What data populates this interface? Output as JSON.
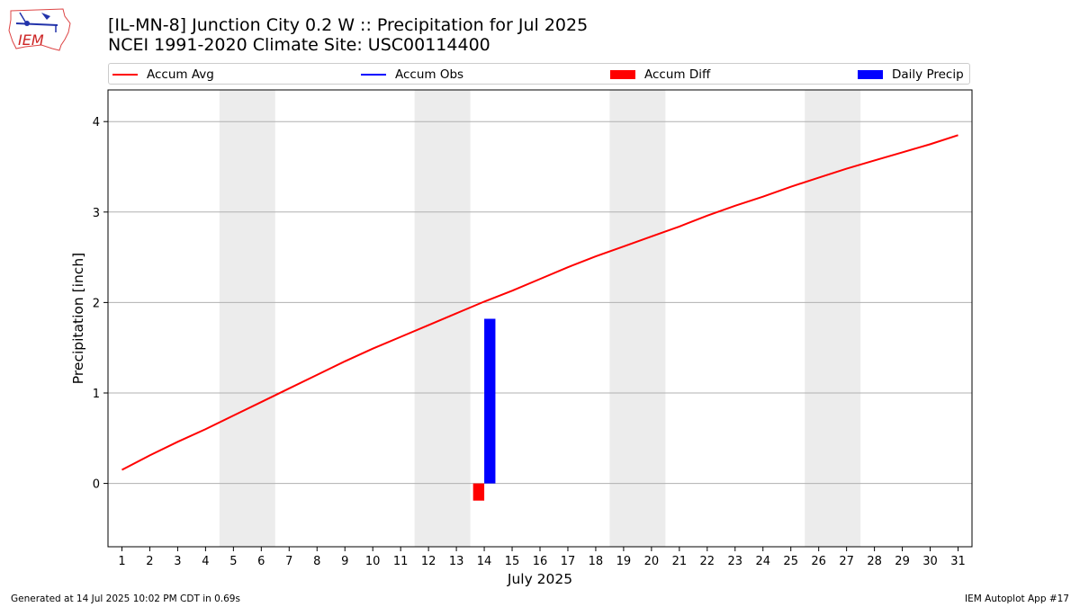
{
  "header": {
    "title_line1": "[IL-MN-8] Junction City 0.2 W :: Precipitation for Jul 2025",
    "title_line2": "NCEI 1991-2020 Climate Site: USC00114400"
  },
  "logo": {
    "text": "IEM"
  },
  "legend": {
    "items": [
      {
        "label": "Accum Avg",
        "color": "#ff0000",
        "kind": "line"
      },
      {
        "label": "Accum Obs",
        "color": "#0000ff",
        "kind": "line"
      },
      {
        "label": "Accum Diff",
        "color": "#ff0000",
        "kind": "box"
      },
      {
        "label": "Daily Precip",
        "color": "#0000ff",
        "kind": "box"
      }
    ]
  },
  "footer": {
    "generated": "Generated at 14 Jul 2025 10:02 PM CDT in 0.69s",
    "app": "IEM Autoplot App #17"
  },
  "chart_data": {
    "type": "line",
    "title": "[IL-MN-8] Junction City 0.2 W :: Precipitation for Jul 2025",
    "subtitle": "NCEI 1991-2020 Climate Site: USC00114400",
    "xlabel": "July 2025",
    "ylabel": "Precipitation [inch]",
    "xlim": [
      0.5,
      31.5
    ],
    "ylim": [
      -0.7,
      4.35
    ],
    "x_ticks": [
      1,
      2,
      3,
      4,
      5,
      6,
      7,
      8,
      9,
      10,
      11,
      12,
      13,
      14,
      15,
      16,
      17,
      18,
      19,
      20,
      21,
      22,
      23,
      24,
      25,
      26,
      27,
      28,
      29,
      30,
      31
    ],
    "y_ticks": [
      0,
      1,
      2,
      3,
      4
    ],
    "grid": "horizontal",
    "legend_position": "top",
    "weekend_shading": [
      [
        4.5,
        6.5
      ],
      [
        11.5,
        13.5
      ],
      [
        18.5,
        20.5
      ],
      [
        25.5,
        27.5
      ]
    ],
    "series": [
      {
        "name": "Accum Avg",
        "type": "line",
        "color": "#ff0000",
        "x": [
          1,
          2,
          3,
          4,
          5,
          6,
          7,
          8,
          9,
          10,
          11,
          12,
          13,
          14,
          15,
          16,
          17,
          18,
          19,
          20,
          21,
          22,
          23,
          24,
          25,
          26,
          27,
          28,
          29,
          30,
          31
        ],
        "values": [
          0.15,
          0.31,
          0.46,
          0.6,
          0.75,
          0.9,
          1.05,
          1.2,
          1.35,
          1.49,
          1.62,
          1.75,
          1.88,
          2.01,
          2.13,
          2.26,
          2.39,
          2.51,
          2.62,
          2.73,
          2.84,
          2.96,
          3.07,
          3.17,
          3.28,
          3.38,
          3.48,
          3.57,
          3.66,
          3.75,
          3.85
        ]
      },
      {
        "name": "Accum Diff",
        "type": "bar",
        "color": "#ff0000",
        "x": [
          14
        ],
        "values": [
          -0.19
        ]
      },
      {
        "name": "Daily Precip",
        "type": "bar",
        "color": "#0000ff",
        "x": [
          14
        ],
        "values": [
          1.82
        ]
      }
    ]
  }
}
